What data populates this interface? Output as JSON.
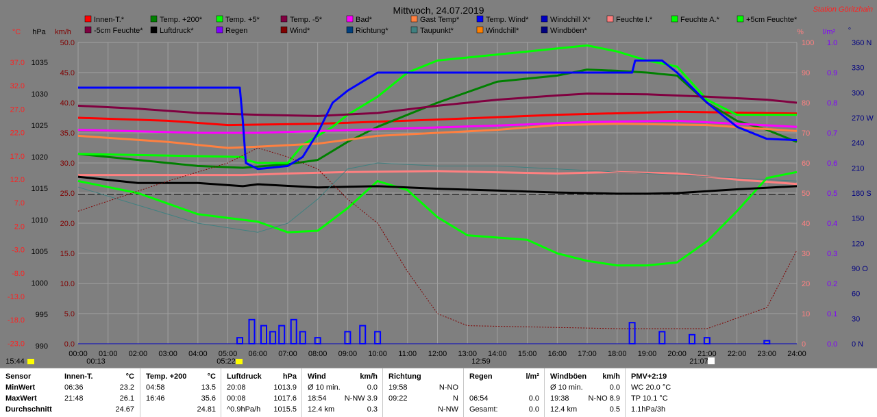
{
  "title": "Mittwoch, 24.07.2019",
  "station": "Station Göritzhain",
  "colors": {
    "plot_bg": "#7f7f7f",
    "grid": "#a6a6a6",
    "axis_left_red": "#ff2020",
    "axis_black": "#000000",
    "axis_maroon": "#800000",
    "axis_pink": "#ff8080",
    "axis_purple": "#8000ff",
    "axis_navy": "#000080"
  },
  "legend": [
    {
      "label": "Innen-T.*",
      "color": "#ff0000"
    },
    {
      "label": "Temp. +200*",
      "color": "#008000"
    },
    {
      "label": "Temp. +5*",
      "color": "#00ff00"
    },
    {
      "label": "Temp. -5*",
      "color": "#800040"
    },
    {
      "label": "Bad*",
      "color": "#ff00ff"
    },
    {
      "label": "Gast Temp*",
      "color": "#ff8040"
    },
    {
      "label": "Temp. Wind*",
      "color": "#0000ff"
    },
    {
      "label": "Windchill X*",
      "color": "#0000c0"
    },
    {
      "label": "Feuchte I.*",
      "color": "#ff8080"
    },
    {
      "label": "Feuchte A.*",
      "color": "#00ff00"
    },
    {
      "label": "+5cm Feuchte*",
      "color": "#00ff00"
    },
    {
      "label": "-5cm Feuchte*",
      "color": "#800040"
    },
    {
      "label": "Luftdruck*",
      "color": "#000000"
    },
    {
      "label": "Regen",
      "color": "#8000ff"
    },
    {
      "label": "Wind*",
      "color": "#800000"
    },
    {
      "label": "Richtung*",
      "color": "#004080"
    },
    {
      "label": "Taupunkt*",
      "color": "#408080"
    },
    {
      "label": "Windchill*",
      "color": "#ff8000"
    },
    {
      "label": "Windböen*",
      "color": "#000080"
    }
  ],
  "axes": {
    "left_temp": {
      "unit": "°C",
      "ticks": [
        "37.0",
        "32.0",
        "27.0",
        "22.0",
        "17.0",
        "12.0",
        "7.0",
        "2.0",
        "-3.0",
        "-8.0",
        "-13.0",
        "-18.0",
        "-23.0"
      ]
    },
    "left_hpa": {
      "unit": "hPa",
      "ticks": [
        "1035",
        "1030",
        "1025",
        "1020",
        "1015",
        "1010",
        "1005",
        "1000",
        "995",
        "990"
      ]
    },
    "left_kmh": {
      "unit": "km/h",
      "ticks": [
        "50.0",
        "45.0",
        "40.0",
        "35.0",
        "30.0",
        "25.0",
        "20.0",
        "15.0",
        "10.0",
        "5.0",
        "0.0"
      ]
    },
    "right_pct": {
      "unit": "%",
      "ticks": [
        "100",
        "90",
        "80",
        "70",
        "60",
        "50",
        "40",
        "30",
        "20",
        "10",
        "0"
      ]
    },
    "right_lm2": {
      "unit": "l/m²",
      "ticks": [
        "1.0",
        "0.9",
        "0.8",
        "0.7",
        "0.6",
        "0.5",
        "0.4",
        "0.3",
        "0.2",
        "0.1",
        "0.0"
      ]
    },
    "right_dir": {
      "unit": "°",
      "ticks": [
        "360 N",
        "330",
        "300",
        "270 W",
        "240",
        "210",
        "180 S",
        "150",
        "120",
        "90 O",
        "60",
        "30",
        "0 N"
      ]
    },
    "x_ticks": [
      "00:00",
      "01:00",
      "02:00",
      "03:00",
      "04:00",
      "05:00",
      "06:00",
      "07:00",
      "08:00",
      "09:00",
      "10:00",
      "11:00",
      "12:00",
      "13:00",
      "14:00",
      "15:00",
      "16:00",
      "17:00",
      "18:00",
      "19:00",
      "20:00",
      "21:00",
      "22:00",
      "23:00",
      "24:00"
    ]
  },
  "time_markers": {
    "left_time": "15:44",
    "sunrise": "00:13",
    "daylight": "05:22",
    "noon": "12:59",
    "sunset": "21:07"
  },
  "chart_data": {
    "type": "line",
    "title": "Mittwoch, 24.07.2019",
    "x_unit": "hour",
    "xlim": [
      0,
      24
    ],
    "series": [
      {
        "name": "Innen-T.*",
        "axis": "kmh",
        "color": "#ff0000",
        "points": [
          [
            0,
            37.5
          ],
          [
            3,
            37
          ],
          [
            5,
            36.3
          ],
          [
            8,
            36.5
          ],
          [
            12,
            37.2
          ],
          [
            16,
            38
          ],
          [
            20,
            38.5
          ],
          [
            24,
            38.2
          ]
        ]
      },
      {
        "name": "Temp. +200*",
        "axis": "kmh",
        "color": "#008000",
        "points": [
          [
            0,
            31.5
          ],
          [
            2,
            30.5
          ],
          [
            4,
            29.5
          ],
          [
            5.5,
            29.2
          ],
          [
            7,
            29.8
          ],
          [
            8,
            30.5
          ],
          [
            9,
            33.5
          ],
          [
            10,
            36
          ],
          [
            12,
            40
          ],
          [
            14,
            43.5
          ],
          [
            16,
            44.5
          ],
          [
            17,
            45.5
          ],
          [
            18,
            45.3
          ],
          [
            19,
            45
          ],
          [
            20,
            44.5
          ],
          [
            21,
            40
          ],
          [
            22,
            37
          ],
          [
            23,
            35.5
          ],
          [
            24,
            33.5
          ]
        ]
      },
      {
        "name": "Temp. +5*",
        "axis": "kmh",
        "color": "#00ff00",
        "points": [
          [
            0,
            31.5
          ],
          [
            5.5,
            31
          ],
          [
            5.6,
            30.5
          ],
          [
            6,
            30
          ],
          [
            7,
            30
          ],
          [
            7.5,
            33
          ],
          [
            8.5,
            36
          ],
          [
            9,
            38
          ],
          [
            10,
            41
          ],
          [
            11,
            45
          ],
          [
            12,
            47
          ],
          [
            14,
            48
          ],
          [
            15,
            48.5
          ],
          [
            16,
            49
          ],
          [
            17,
            49.5
          ],
          [
            18,
            48.5
          ],
          [
            19,
            47
          ],
          [
            20,
            46
          ],
          [
            21,
            40.5
          ],
          [
            22,
            38
          ],
          [
            23,
            38
          ],
          [
            24,
            38
          ]
        ]
      },
      {
        "name": "Temp. -5*",
        "axis": "kmh",
        "color": "#800040",
        "points": [
          [
            0,
            39.5
          ],
          [
            2,
            39
          ],
          [
            4,
            38.3
          ],
          [
            6,
            38
          ],
          [
            8,
            37.8
          ],
          [
            10,
            38.3
          ],
          [
            12,
            39.5
          ],
          [
            14,
            40.5
          ],
          [
            16,
            41.2
          ],
          [
            17,
            41.5
          ],
          [
            19,
            41.4
          ],
          [
            21,
            41
          ],
          [
            23,
            40.5
          ],
          [
            24,
            40
          ]
        ]
      },
      {
        "name": "Bad*",
        "axis": "kmh",
        "color": "#ff00ff",
        "points": [
          [
            0,
            35.5
          ],
          [
            4,
            35
          ],
          [
            6,
            35
          ],
          [
            8,
            35.3
          ],
          [
            10,
            35.6
          ],
          [
            14,
            36.2
          ],
          [
            17,
            36.8
          ],
          [
            20,
            37
          ],
          [
            24,
            36
          ]
        ]
      },
      {
        "name": "Gast Temp*",
        "axis": "kmh",
        "color": "#ff8040",
        "points": [
          [
            0,
            34.5
          ],
          [
            3,
            33.5
          ],
          [
            5,
            32.5
          ],
          [
            6,
            32.7
          ],
          [
            8,
            33.2
          ],
          [
            10,
            34.5
          ],
          [
            12,
            35
          ],
          [
            14,
            35.5
          ],
          [
            16,
            36.3
          ],
          [
            18,
            36.5
          ],
          [
            21,
            36.3
          ],
          [
            24,
            35.3
          ]
        ]
      },
      {
        "name": "Temp. Wind*",
        "axis": "kmh",
        "color": "#0000ff",
        "points": [
          [
            0,
            42.5
          ],
          [
            5.4,
            42.5
          ],
          [
            5.5,
            37
          ],
          [
            5.6,
            30
          ],
          [
            6,
            29
          ],
          [
            7,
            29.5
          ],
          [
            7.5,
            31
          ],
          [
            8,
            35
          ],
          [
            8.5,
            40
          ],
          [
            9,
            42
          ],
          [
            9.5,
            43.5
          ],
          [
            10,
            45
          ],
          [
            17,
            45
          ],
          [
            18,
            45
          ],
          [
            18.5,
            45
          ],
          [
            18.6,
            47
          ],
          [
            19.5,
            47
          ],
          [
            20,
            45
          ],
          [
            21,
            40
          ],
          [
            22,
            36
          ],
          [
            23,
            34
          ],
          [
            24,
            33.8
          ]
        ]
      },
      {
        "name": "Feuchte I.*",
        "axis": "pct",
        "color": "#ff8080",
        "points": [
          [
            0,
            56
          ],
          [
            4,
            56
          ],
          [
            5.5,
            56
          ],
          [
            7,
            56.5
          ],
          [
            9,
            57
          ],
          [
            12,
            57.3
          ],
          [
            16,
            56.5
          ],
          [
            18,
            57
          ],
          [
            20,
            56.5
          ],
          [
            22,
            54.5
          ],
          [
            24,
            53
          ]
        ]
      },
      {
        "name": "Feuchte A.*",
        "axis": "pct",
        "color": "#00ff00",
        "points": [
          [
            0,
            54
          ],
          [
            2,
            50
          ],
          [
            4,
            43
          ],
          [
            6,
            40.5
          ],
          [
            7,
            37
          ],
          [
            8,
            37.5
          ],
          [
            9,
            45
          ],
          [
            10,
            54
          ],
          [
            11,
            51
          ],
          [
            12,
            42
          ],
          [
            13,
            36
          ],
          [
            15,
            34.5
          ],
          [
            16,
            30
          ],
          [
            17,
            27.5
          ],
          [
            18,
            26
          ],
          [
            19,
            26
          ],
          [
            20,
            27
          ],
          [
            21,
            34
          ],
          [
            22,
            44
          ],
          [
            23,
            55
          ],
          [
            24,
            57
          ]
        ]
      },
      {
        "name": "Luftdruck*",
        "axis": "hpa",
        "color": "#000000",
        "points": [
          [
            0,
            1016.5
          ],
          [
            2,
            1015.5
          ],
          [
            4,
            1015.5
          ],
          [
            5.5,
            1015
          ],
          [
            6,
            1015.3
          ],
          [
            8,
            1014.8
          ],
          [
            10,
            1015
          ],
          [
            12,
            1014.6
          ],
          [
            14,
            1014.3
          ],
          [
            16,
            1014
          ],
          [
            18,
            1013.8
          ],
          [
            19,
            1013.8
          ],
          [
            20,
            1013.9
          ],
          [
            22,
            1014.5
          ],
          [
            24,
            1015
          ]
        ]
      },
      {
        "name": "Taupunkt*",
        "axis": "kmh",
        "color": "#408080",
        "points": [
          [
            0,
            26
          ],
          [
            2,
            23
          ],
          [
            4,
            20
          ],
          [
            6,
            18.5
          ],
          [
            7,
            20
          ],
          [
            8,
            24
          ],
          [
            9,
            29
          ],
          [
            10,
            30
          ],
          [
            12,
            29.5
          ],
          [
            14,
            29.5
          ],
          [
            16,
            29
          ],
          [
            18,
            28.5
          ],
          [
            20,
            28
          ],
          [
            22,
            27.5
          ],
          [
            24,
            27
          ]
        ]
      },
      {
        "name": "Windchill*",
        "axis": "kmh",
        "color": "#800000",
        "points": [
          [
            0,
            22
          ],
          [
            3,
            27
          ],
          [
            5,
            30
          ],
          [
            6,
            32.5
          ],
          [
            7,
            31
          ],
          [
            8,
            29
          ],
          [
            9,
            24
          ],
          [
            10,
            20
          ],
          [
            11,
            12
          ],
          [
            12,
            5
          ],
          [
            13,
            3
          ],
          [
            18,
            2.5
          ],
          [
            21,
            2.5
          ],
          [
            23,
            6
          ],
          [
            24,
            15.5
          ]
        ]
      }
    ],
    "wind_bars": [
      [
        5.4,
        1
      ],
      [
        5.8,
        4
      ],
      [
        6.2,
        3
      ],
      [
        6.5,
        2
      ],
      [
        6.8,
        3
      ],
      [
        7.2,
        4
      ],
      [
        7.5,
        2
      ],
      [
        8,
        1
      ],
      [
        9,
        2
      ],
      [
        9.5,
        3
      ],
      [
        10,
        2
      ],
      [
        18.5,
        3.5
      ],
      [
        19.5,
        2
      ],
      [
        20.5,
        1.5
      ],
      [
        21,
        1
      ],
      [
        23,
        0.5
      ]
    ]
  }
}
